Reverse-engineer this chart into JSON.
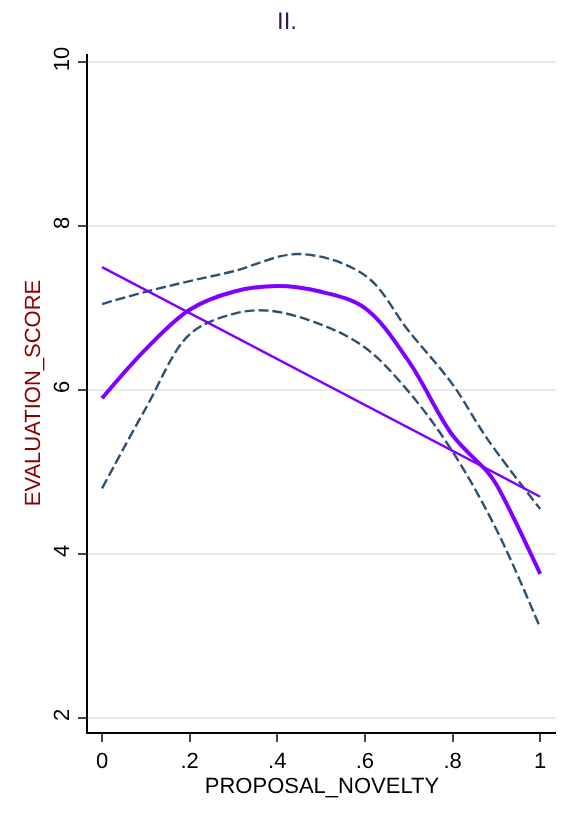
{
  "chart_data": {
    "type": "line",
    "title": "II.",
    "xlabel": "PROPOSAL_NOVELTY",
    "ylabel": "EVALUATION_SCORE",
    "xlim": [
      -0.032,
      1.036
    ],
    "xticks": [
      0,
      {
        "value": 0.2,
        "label": ".2"
      },
      {
        "value": 0.4,
        "label": ".4"
      },
      {
        "value": 0.6,
        "label": ".6"
      },
      {
        "value": 0.8,
        "label": ".8"
      },
      1
    ],
    "ylim": [
      1.83,
      10.1
    ],
    "yticks": [
      2,
      4,
      6,
      8,
      10
    ],
    "grid": "y",
    "marker": "none",
    "series": [
      {
        "color": "#2f4f6f",
        "line_style": "dashed",
        "x": [
          0,
          0.1,
          0.2,
          0.3,
          0.38,
          0.5,
          0.6,
          0.7,
          0.8,
          0.9,
          1
        ],
        "values": [
          4.8,
          5.78,
          6.68,
          6.93,
          6.97,
          6.8,
          6.52,
          5.98,
          5.25,
          4.3,
          3.1
        ]
      },
      {
        "color": "#2f4f6f",
        "line_style": "dashed",
        "x": [
          0,
          0.1,
          0.2,
          0.3,
          0.45,
          0.6,
          0.7,
          0.8,
          0.88,
          1
        ],
        "values": [
          7.05,
          7.2,
          7.33,
          7.45,
          7.66,
          7.4,
          6.72,
          6.07,
          5.4,
          4.55
        ]
      },
      {
        "color": "#7f00ff",
        "line_style": "solid",
        "x": [
          0,
          1
        ],
        "values": [
          7.5,
          4.7
        ]
      },
      {
        "color": "#7f00ff",
        "line_style": "solid",
        "x": [
          0,
          0.1,
          0.2,
          0.3,
          0.4,
          0.5,
          0.6,
          0.7,
          0.8,
          0.88,
          0.9,
          1
        ],
        "values": [
          5.9,
          6.5,
          6.98,
          7.2,
          7.27,
          7.2,
          7.0,
          6.35,
          5.45,
          5.0,
          4.85,
          3.76
        ]
      }
    ]
  }
}
